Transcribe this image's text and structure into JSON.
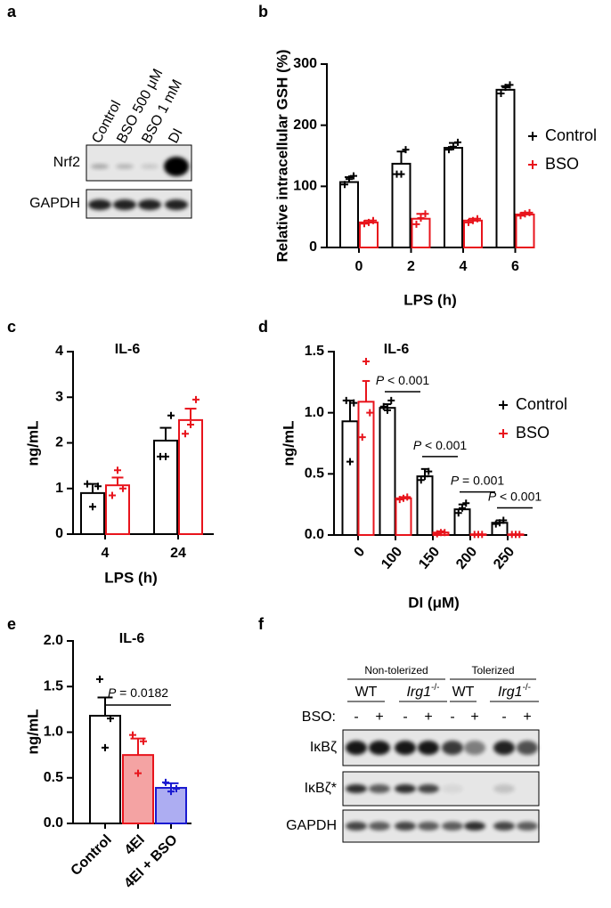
{
  "panel_labels": [
    "a",
    "b",
    "c",
    "d",
    "e",
    "f"
  ],
  "blot_a": {
    "lanes": [
      "Control",
      "BSO 500 μM",
      "BSO 1 mM",
      "DI"
    ],
    "rows": [
      "Nrf2",
      "GAPDH"
    ]
  },
  "blot_f": {
    "groups": [
      "Non-tolerized",
      "Tolerized"
    ],
    "genotypes": [
      "WT",
      "Irg1-/-",
      "WT",
      "Irg1-/-"
    ],
    "treatment_label": "BSO:",
    "treatment": [
      "-",
      "+",
      "-",
      "+",
      "-",
      "+",
      "-",
      "+"
    ],
    "rows": [
      "IκBζ",
      "IκBζ*",
      "GAPDH"
    ]
  },
  "chart_data": [
    {
      "type": "bar",
      "ylabel": "Relative intracellular GSH (%)",
      "xlabel": "LPS (h)",
      "categories": [
        "0",
        "2",
        "4",
        "6"
      ],
      "series": [
        {
          "name": "Control",
          "color": "#000000",
          "values": [
            107,
            137,
            163,
            258
          ],
          "errors": [
            8,
            20,
            8,
            6
          ],
          "points": [
            [
              103,
              112,
              117
            ],
            [
              120,
              120,
              160
            ],
            [
              160,
              165,
              172
            ],
            [
              252,
              262,
              266
            ]
          ]
        },
        {
          "name": "BSO",
          "color": "#e8141c",
          "values": [
            41,
            47,
            44,
            54
          ],
          "errors": [
            3,
            8,
            3,
            3
          ],
          "points": [
            [
              39,
              41,
              44
            ],
            [
              38,
              48,
              55
            ],
            [
              41,
              44,
              47
            ],
            [
              52,
              55,
              57
            ]
          ]
        }
      ],
      "ylim": [
        0,
        300
      ],
      "yticks": [
        0,
        100,
        200,
        300
      ]
    },
    {
      "type": "bar",
      "title": "IL-6",
      "ylabel": "ng/mL",
      "xlabel": "LPS (h)",
      "categories": [
        "4",
        "24"
      ],
      "series": [
        {
          "color": "#000000",
          "values": [
            0.9,
            2.05
          ],
          "errors": [
            0.2,
            0.28
          ],
          "points": [
            [
              1.1,
              0.6,
              1.05
            ],
            [
              1.7,
              1.7,
              2.6
            ]
          ]
        },
        {
          "color": "#e8141c",
          "values": [
            1.07,
            2.5
          ],
          "errors": [
            0.17,
            0.25
          ],
          "points": [
            [
              0.85,
              1.4,
              1.0
            ],
            [
              2.2,
              2.4,
              2.95
            ]
          ]
        }
      ],
      "ylim": [
        0,
        4
      ],
      "yticks": [
        0,
        1,
        2,
        3,
        4
      ]
    },
    {
      "type": "bar",
      "title": "IL-6",
      "ylabel": "ng/mL",
      "xlabel": "DI (μM)",
      "categories": [
        "0",
        "100",
        "150",
        "200",
        "250"
      ],
      "p_values": [
        null,
        "P < 0.001",
        "P < 0.001",
        "P = 0.001",
        "P < 0.001"
      ],
      "series": [
        {
          "name": "Control",
          "color": "#000000",
          "values": [
            0.93,
            1.04,
            0.48,
            0.21,
            0.1
          ],
          "errors": [
            0.17,
            0.03,
            0.06,
            0.04,
            0.02
          ],
          "points": [
            [
              1.1,
              0.6,
              1.08
            ],
            [
              1.05,
              1.02,
              1.1
            ],
            [
              0.45,
              0.48,
              0.52
            ],
            [
              0.18,
              0.22,
              0.26
            ],
            [
              0.09,
              0.1,
              0.12
            ]
          ]
        },
        {
          "name": "BSO",
          "color": "#e8141c",
          "values": [
            1.09,
            0.3,
            0.02,
            0.005,
            0.005
          ],
          "errors": [
            0.17,
            0.01,
            0.01,
            0,
            0
          ],
          "points": [
            [
              0.8,
              1.42,
              1.0
            ],
            [
              0.29,
              0.3,
              0.31
            ],
            [
              0.01,
              0.02,
              0.02
            ],
            [
              0.005,
              0.005,
              0.005
            ],
            [
              0.005,
              0.005,
              0.005
            ]
          ]
        }
      ],
      "ylim": [
        0,
        1.5
      ],
      "yticks": [
        {
          "value": 0,
          "label": "0.0"
        },
        {
          "value": 0.5,
          "label": "0.5"
        },
        {
          "value": 1,
          "label": "1.0"
        },
        {
          "value": 1.5,
          "label": "1.5"
        }
      ]
    },
    {
      "type": "bar",
      "title": "IL-6",
      "ylabel": "ng/mL",
      "annotation": "P = 0.0182",
      "categories": [
        "Control",
        "4EI",
        "4EI + BSO"
      ],
      "values": [
        1.18,
        0.75,
        0.39
      ],
      "errors": [
        0.2,
        0.18,
        0.05
      ],
      "points": [
        [
          1.58,
          0.83,
          1.15
        ],
        [
          0.97,
          0.55,
          0.9
        ],
        [
          0.45,
          0.35,
          0.38
        ]
      ],
      "colors": [
        "#000000",
        "#e8141c",
        "#1a1ad0"
      ],
      "fill_colors": [
        "#ffffff",
        "#f4a3a3",
        "#adadf2"
      ],
      "ylim": [
        0,
        2
      ],
      "yticks": [
        {
          "value": 0,
          "label": "0.0"
        },
        {
          "value": 0.5,
          "label": "0.5"
        },
        {
          "value": 1,
          "label": "1.0"
        },
        {
          "value": 1.5,
          "label": "1.5"
        },
        {
          "value": 2,
          "label": "2.0"
        }
      ]
    }
  ]
}
